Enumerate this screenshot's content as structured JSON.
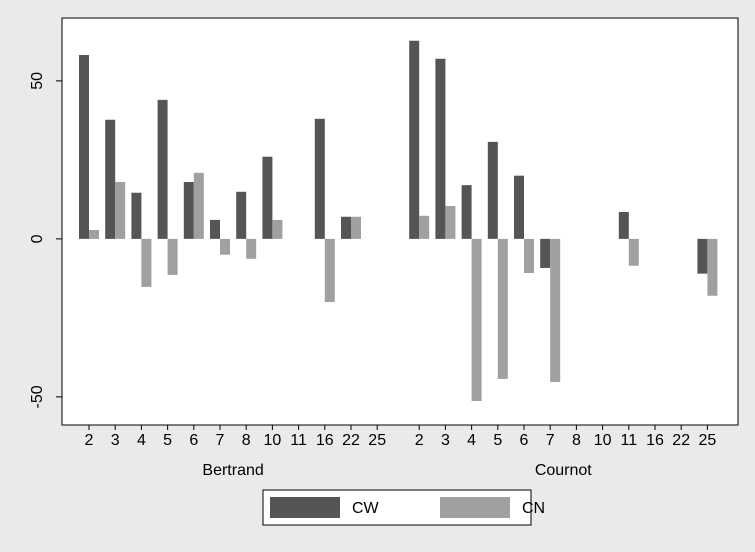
{
  "chart_data": {
    "type": "grouped-bar",
    "series": [
      {
        "name": "CW",
        "color": "#555555"
      },
      {
        "name": "CN",
        "color": "#a0a0a0"
      }
    ],
    "groups": [
      {
        "name": "Bertrand",
        "categories": [
          "2",
          "3",
          "4",
          "5",
          "6",
          "7",
          "8",
          "10",
          "11",
          "16",
          "22",
          "25"
        ],
        "values": [
          [
            58.2,
            37.7,
            14.6,
            44,
            18,
            6,
            14.9,
            26,
            null,
            38,
            7,
            null
          ],
          [
            2.8,
            18,
            -15.2,
            -11.4,
            20.9,
            -5,
            -6.3,
            6,
            null,
            -20,
            7,
            null
          ]
        ]
      },
      {
        "name": "Cournot",
        "categories": [
          "2",
          "3",
          "4",
          "5",
          "6",
          "7",
          "8",
          "10",
          "11",
          "16",
          "22",
          "25"
        ],
        "values": [
          [
            62.7,
            57,
            17,
            30.7,
            20,
            -9.2,
            null,
            null,
            8.5,
            null,
            null,
            -11
          ],
          [
            7.3,
            10.4,
            -51.3,
            -44.3,
            -10.8,
            -45.3,
            null,
            null,
            -8.5,
            null,
            null,
            -18
          ]
        ]
      }
    ],
    "ylim": [
      -58.9,
      69.9
    ],
    "yticks": [
      -50,
      0,
      50
    ]
  }
}
